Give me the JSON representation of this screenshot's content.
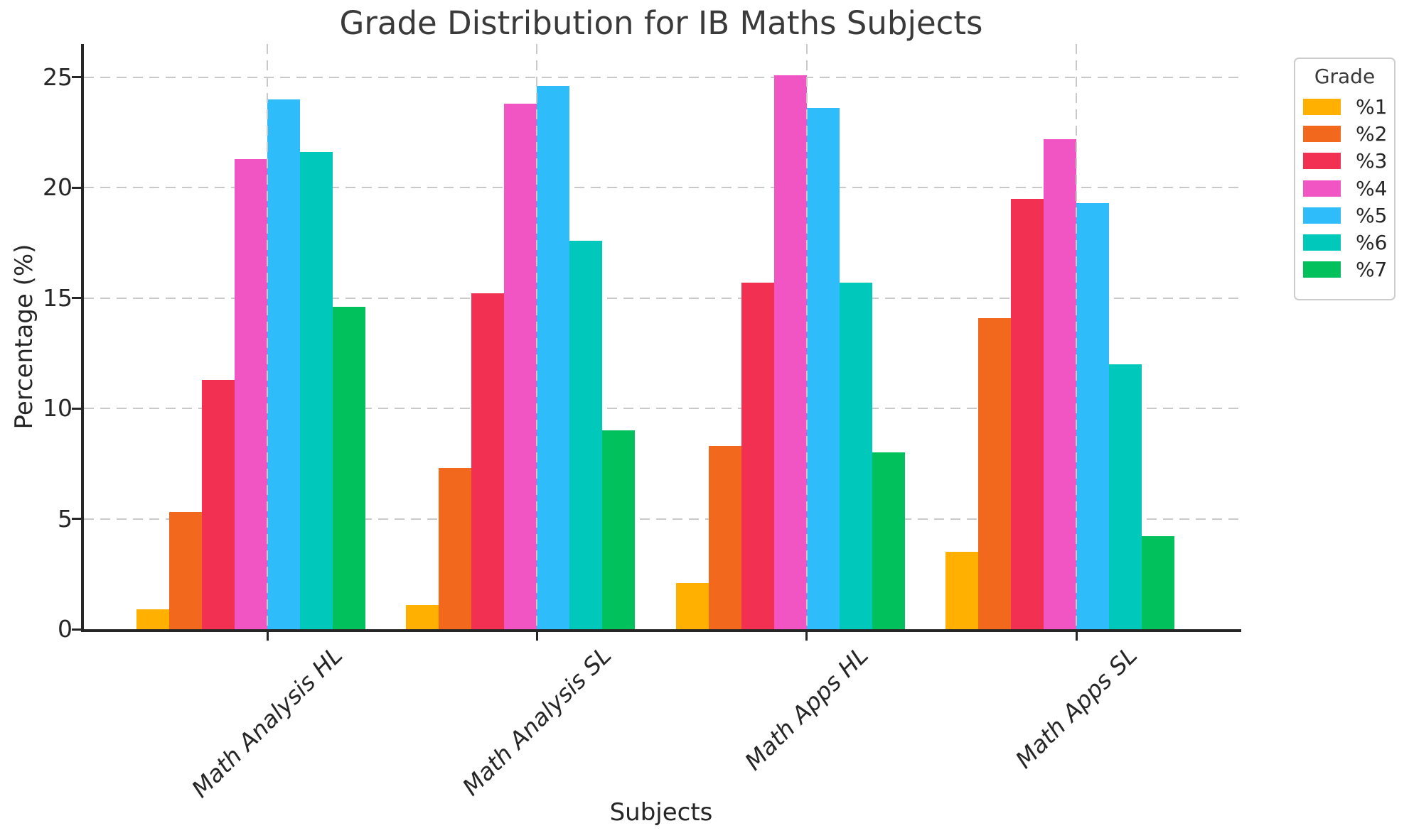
{
  "figure": {
    "title": "Grade Distribution for IB Maths Subjects",
    "xlabel": "Subjects",
    "ylabel": "Percentage (%)"
  },
  "colors": {
    "axis": "#262626",
    "title_text": "#3a3a3a",
    "grid": "#c9c9c9",
    "background": "#ffffff"
  },
  "chart_data": {
    "type": "bar",
    "title": "Grade Distribution for IB Maths Subjects",
    "xlabel": "Subjects",
    "ylabel": "Percentage (%)",
    "categories": [
      "Math Analysis HL",
      "Math Analysis SL",
      "Math Apps HL",
      "Math Apps SL"
    ],
    "series": [
      {
        "name": "%1",
        "color": "#FFB000",
        "values": [
          0.9,
          1.1,
          2.1,
          3.5
        ]
      },
      {
        "name": "%2",
        "color": "#F2691E",
        "values": [
          5.3,
          7.3,
          8.3,
          14.1
        ]
      },
      {
        "name": "%3",
        "color": "#F23051",
        "values": [
          11.3,
          15.2,
          15.7,
          19.5
        ]
      },
      {
        "name": "%4",
        "color": "#F155C4",
        "values": [
          21.3,
          23.8,
          25.1,
          22.2
        ]
      },
      {
        "name": "%5",
        "color": "#2EBCFA",
        "values": [
          24.0,
          24.6,
          23.6,
          19.3
        ]
      },
      {
        "name": "%6",
        "color": "#00C9BC",
        "values": [
          21.6,
          17.6,
          15.7,
          12.0
        ]
      },
      {
        "name": "%7",
        "color": "#00C15C",
        "values": [
          14.6,
          9.0,
          8.0,
          4.2
        ]
      }
    ],
    "ylim": [
      0,
      26.5
    ],
    "yticks": [
      0,
      5,
      10,
      15,
      20,
      25
    ],
    "grid": {
      "horizontal": "dashed",
      "vertical": "dashed-at-group-centers"
    },
    "legend": {
      "title": "Grade",
      "position": "outside-upper-right"
    }
  }
}
